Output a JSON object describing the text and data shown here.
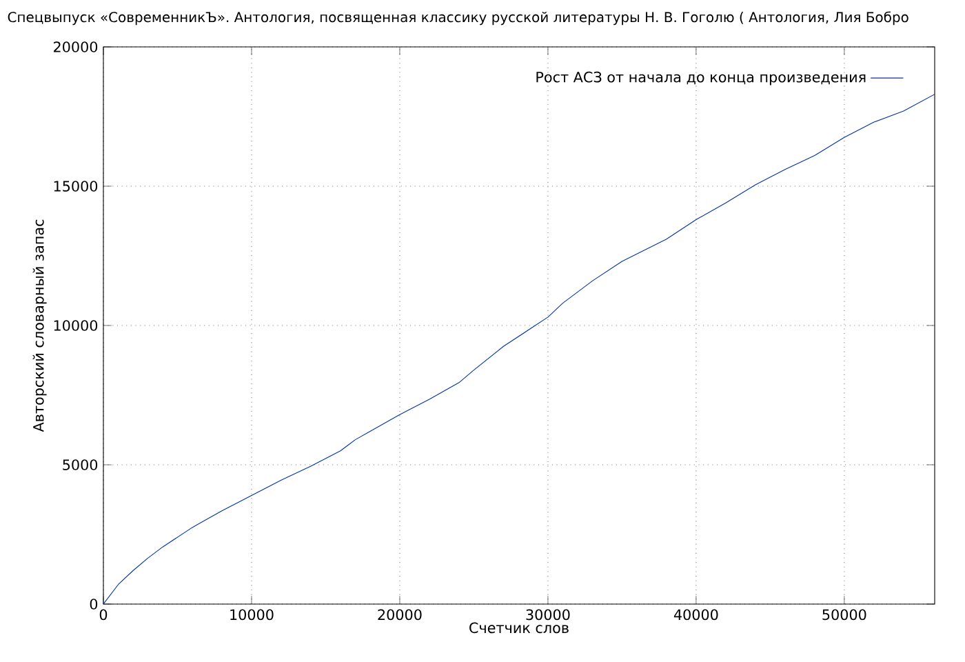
{
  "chart_data": {
    "type": "line",
    "title": "Спецвыпуск «СовременникЪ». Антология, посвященная классику русской литературы Н. В. Гоголю ( Антология, Лия Бобро",
    "xlabel": "Счетчик слов",
    "ylabel": "Авторский словарный запас",
    "x": [
      0,
      1000,
      2000,
      3000,
      4000,
      5000,
      6000,
      7000,
      8000,
      10000,
      12000,
      14000,
      16000,
      17000,
      18000,
      20000,
      22000,
      24000,
      25000,
      27000,
      30000,
      31000,
      33000,
      35000,
      38000,
      40000,
      42000,
      44000,
      46000,
      48000,
      50000,
      52000,
      54000,
      56100
    ],
    "series": [
      {
        "name": "Рост АСЗ от начала до конца произведения",
        "color": "#0033aa",
        "values": [
          0,
          700,
          1200,
          1650,
          2050,
          2400,
          2750,
          3050,
          3350,
          3900,
          4450,
          4950,
          5500,
          5900,
          6200,
          6800,
          7350,
          7950,
          8400,
          9250,
          10300,
          10800,
          11600,
          12300,
          13100,
          13800,
          14400,
          15050,
          15600,
          16100,
          16750,
          17300,
          17700,
          18300
        ]
      }
    ],
    "xlim": [
      0,
      56100
    ],
    "ylim": [
      0,
      20000
    ],
    "xticks": [
      0,
      10000,
      20000,
      30000,
      40000,
      50000
    ],
    "yticks": [
      0,
      5000,
      10000,
      15000,
      20000
    ],
    "grid": true,
    "legend": "top right",
    "line_style": "solid"
  }
}
